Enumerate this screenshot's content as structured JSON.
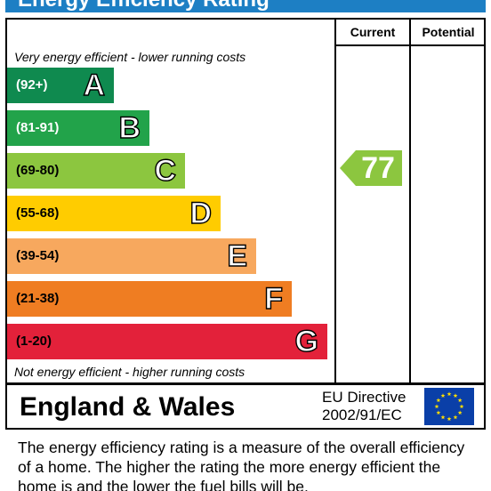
{
  "header": {
    "title": "Energy Efficiency Rating"
  },
  "columns": {
    "current": "Current",
    "potential": "Potential"
  },
  "notes": {
    "top": "Very energy efficient - lower running costs",
    "bottom": "Not energy efficient - higher running costs"
  },
  "chart_data": {
    "type": "bar",
    "title": "Energy Efficiency Rating",
    "categories": [
      "A",
      "B",
      "C",
      "D",
      "E",
      "F",
      "G"
    ],
    "ranges": [
      "(92+)",
      "(81-91)",
      "(69-80)",
      "(55-68)",
      "(39-54)",
      "(21-38)",
      "(1-20)"
    ],
    "colors": [
      "#0f8a4f",
      "#22a34a",
      "#8cc63f",
      "#ffcc00",
      "#f7a85e",
      "#ef7d22",
      "#e3213a"
    ],
    "current_rating": {
      "value": "77",
      "band": "C",
      "color": "#8cc63f"
    },
    "potential_rating": null
  },
  "footer": {
    "region": "England & Wales",
    "directive_line1": "EU Directive",
    "directive_line2": "2002/91/EC",
    "flag_colors": {
      "background": "#0a3fa8",
      "stars": "#ffdd00"
    }
  },
  "description": "The energy efficiency rating is a measure of the overall efficiency of a home.  The higher the rating the more energy efficient the home is and the lower the fuel bills will be."
}
